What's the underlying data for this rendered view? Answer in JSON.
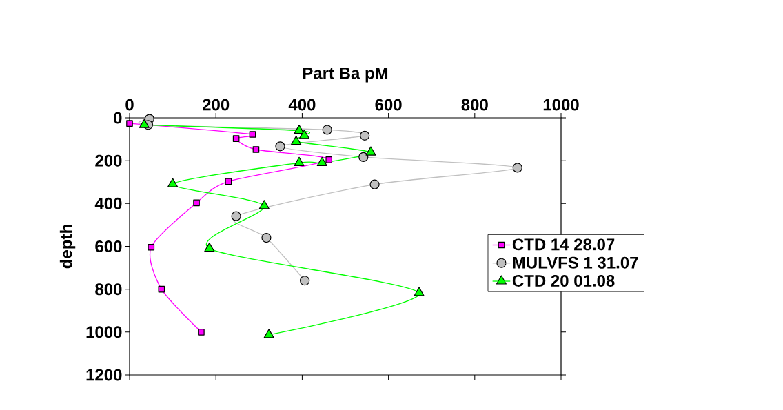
{
  "chart_data": {
    "type": "line",
    "xlabel": "Part Ba pM",
    "ylabel": "depth",
    "xlim": [
      0,
      1000
    ],
    "xticks": [
      0,
      200,
      400,
      600,
      800,
      1000
    ],
    "ylim": [
      1200,
      0
    ],
    "yticks": [
      0,
      200,
      400,
      600,
      800,
      1000,
      1200
    ],
    "grid": false,
    "legend": "right",
    "line_style": "solid",
    "series": [
      {
        "name": "CTD 14 28.07",
        "color": "#ff00ff",
        "marker": "square",
        "x": [
          0,
          285,
          247,
          293,
          462,
          229,
          155,
          50,
          74,
          166
        ],
        "values": [
          26,
          77,
          97,
          148,
          196,
          297,
          397,
          604,
          800,
          1000
        ]
      },
      {
        "name": "MULVFS 1 31.07",
        "color": "#c0c0c0",
        "marker": "circle",
        "x": [
          46,
          43,
          458,
          545,
          349,
          542,
          899,
          568,
          247,
          317,
          406
        ],
        "values": [
          5,
          33,
          56,
          83,
          133,
          183,
          233,
          311,
          459,
          560,
          760
        ]
      },
      {
        "name": "CTD 20 01.08",
        "color": "#00ff00",
        "marker": "triangle",
        "x": [
          34,
          393,
          405,
          386,
          559,
          446,
          393,
          100,
          312,
          185,
          671,
          323
        ],
        "values": [
          33,
          60,
          83,
          111,
          161,
          210,
          210,
          309,
          411,
          610,
          817,
          1013
        ]
      }
    ]
  }
}
